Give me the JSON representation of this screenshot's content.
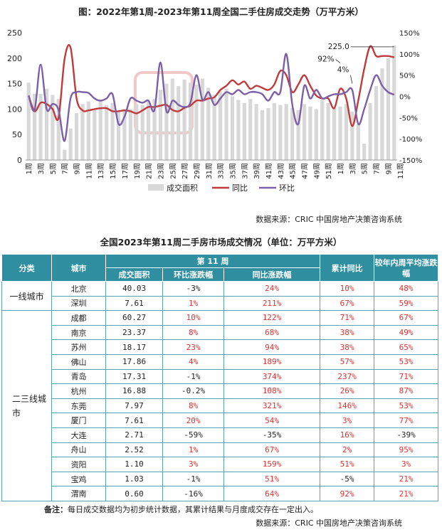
{
  "chart_data": {
    "type": "bar+line",
    "title": "图：2022年第1周-2023年第11周全国二手住房成交走势（万平方米）",
    "legend": [
      "成交面积",
      "同比",
      "环比"
    ],
    "left_axis_ticks": [
      "0",
      "50",
      "100",
      "150",
      "200",
      "250"
    ],
    "right_axis_ticks": [
      "-150%",
      "-100%",
      "-50%",
      "0%",
      "50%",
      "100%",
      "150%"
    ],
    "left_ylim": [
      0,
      250
    ],
    "right_ylim": [
      -150,
      150
    ],
    "x_tick_labels": [
      "1周",
      "3周",
      "5周",
      "7周",
      "9周",
      "11周",
      "13周",
      "15周",
      "17周",
      "19周",
      "21周",
      "23周",
      "25周",
      "27周",
      "29周",
      "31周",
      "33周",
      "35周",
      "37周",
      "39周",
      "41周",
      "43周",
      "45周",
      "47周",
      "49周",
      "51周",
      "1周",
      "3周",
      "5周",
      "7周",
      "9周",
      "11周"
    ],
    "annotations": [
      "225.0",
      "92%",
      "4%"
    ],
    "area": [
      152,
      130,
      130,
      140,
      128,
      120,
      20,
      62,
      92,
      110,
      115,
      100,
      118,
      108,
      112,
      95,
      100,
      100,
      110,
      108,
      115,
      120,
      138,
      150,
      160,
      145,
      158,
      152,
      148,
      160,
      142,
      128,
      135,
      140,
      125,
      118,
      112,
      120,
      110,
      98,
      102,
      112,
      108,
      110,
      102,
      98,
      110,
      105,
      100,
      118,
      112,
      102,
      105,
      110,
      95,
      70,
      32,
      112,
      145,
      180,
      200,
      225
    ],
    "yoy": [
      2,
      -35,
      -15,
      -18,
      -30,
      -50,
      88,
      115,
      -5,
      -33,
      -33,
      -30,
      -28,
      -28,
      -35,
      -35,
      -33,
      -35,
      -40,
      -33,
      -25,
      -25,
      -22,
      -20,
      -32,
      -35,
      -27,
      -22,
      -10,
      -10,
      -5,
      -2,
      15,
      25,
      38,
      28,
      35,
      18,
      25,
      20,
      15,
      28,
      60,
      50,
      10,
      28,
      50,
      25,
      2,
      -5,
      -5,
      -28,
      18,
      -5,
      -70,
      -10,
      65,
      118,
      95,
      95,
      95,
      92
    ],
    "mom": [
      2,
      -32,
      75,
      -30,
      -18,
      -32,
      -105,
      -5,
      10,
      10,
      8,
      -5,
      -10,
      -5,
      5,
      -65,
      -48,
      -5,
      -10,
      -15,
      -10,
      -32,
      80,
      -35,
      -10,
      -20,
      -25,
      -15,
      50,
      -8,
      10,
      -20,
      -5,
      10,
      5,
      15,
      5,
      10,
      10,
      5,
      -10,
      10,
      10,
      100,
      -20,
      -65,
      25,
      -5,
      15,
      -5,
      0,
      5,
      5,
      10,
      15,
      -65,
      -30,
      15,
      50,
      25,
      10,
      4
    ]
  },
  "chart_source": "数据来源：CRIC 中国房地产决策咨询系统",
  "table": {
    "title": "全国2023年第11周二手房市场成交情况（单位：万平方米）",
    "headers": {
      "category": "分类",
      "city": "城市",
      "week_group": "第 11 周",
      "area": "成交面积",
      "mom": "环比涨跌幅",
      "yoy": "同比涨跌幅",
      "cum_yoy": "累计同比",
      "prev_year": "较年内周平均涨跌幅"
    },
    "groups": [
      {
        "category": "一线城市",
        "rows": [
          {
            "city": "北京",
            "area": "40.03",
            "mom": "-3%",
            "yoy": "24%",
            "cum_yoy": "10%",
            "prev_year": "48%"
          },
          {
            "city": "深圳",
            "area": "7.61",
            "mom": "1%",
            "yoy": "211%",
            "cum_yoy": "67%",
            "prev_year": "59%"
          }
        ]
      },
      {
        "category": "二三线城市",
        "rows": [
          {
            "city": "成都",
            "area": "60.27",
            "mom": "10%",
            "yoy": "122%",
            "cum_yoy": "71%",
            "prev_year": "67%"
          },
          {
            "city": "南京",
            "area": "23.37",
            "mom": "8%",
            "yoy": "68%",
            "cum_yoy": "38%",
            "prev_year": "49%"
          },
          {
            "city": "苏州",
            "area": "18.17",
            "mom": "23%",
            "yoy": "94%",
            "cum_yoy": "38%",
            "prev_year": "65%"
          },
          {
            "city": "佛山",
            "area": "17.86",
            "mom": "4%",
            "yoy": "189%",
            "cum_yoy": "57%",
            "prev_year": "53%"
          },
          {
            "city": "青岛",
            "area": "17.31",
            "mom": "-1%",
            "yoy": "374%",
            "cum_yoy": "237%",
            "prev_year": "71%"
          },
          {
            "city": "杭州",
            "area": "16.88",
            "mom": "-0.2%",
            "yoy": "108%",
            "cum_yoy": "26%",
            "prev_year": "87%"
          },
          {
            "city": "东莞",
            "area": "7.97",
            "mom": "8%",
            "yoy": "321%",
            "cum_yoy": "146%",
            "prev_year": "53%"
          },
          {
            "city": "厦门",
            "area": "7.61",
            "mom": "20%",
            "yoy": "54%",
            "cum_yoy": "3%",
            "prev_year": "77%"
          },
          {
            "city": "大连",
            "area": "2.71",
            "mom": "-59%",
            "yoy": "-35%",
            "cum_yoy": "16%",
            "prev_year": "-39%"
          },
          {
            "city": "舟山",
            "area": "2.52",
            "mom": "1%",
            "yoy": "67%",
            "cum_yoy": "2%",
            "prev_year": "95%"
          },
          {
            "city": "资阳",
            "area": "1.10",
            "mom": "3%",
            "yoy": "159%",
            "cum_yoy": "51%",
            "prev_year": "3%"
          },
          {
            "city": "宝鸡",
            "area": "1.03",
            "mom": "-1%",
            "yoy": "51%",
            "cum_yoy": "-5%",
            "prev_year": "21%"
          },
          {
            "city": "渭南",
            "area": "0.60",
            "mom": "-16%",
            "yoy": "64%",
            "cum_yoy": "92%",
            "prev_year": "21%"
          }
        ]
      }
    ],
    "note_label": "备注：",
    "note": "每日成交数据均为初步统计数据，其累计结果与月度成交存在一定出入。",
    "source": "数据来源：CRIC 中国房地产决策咨询系统"
  },
  "colors": {
    "area": "#d8d8d8",
    "yoy": "#c0393b",
    "mom": "#7b5fa8",
    "header": "#2f8fa0",
    "positive": "#e03030"
  }
}
